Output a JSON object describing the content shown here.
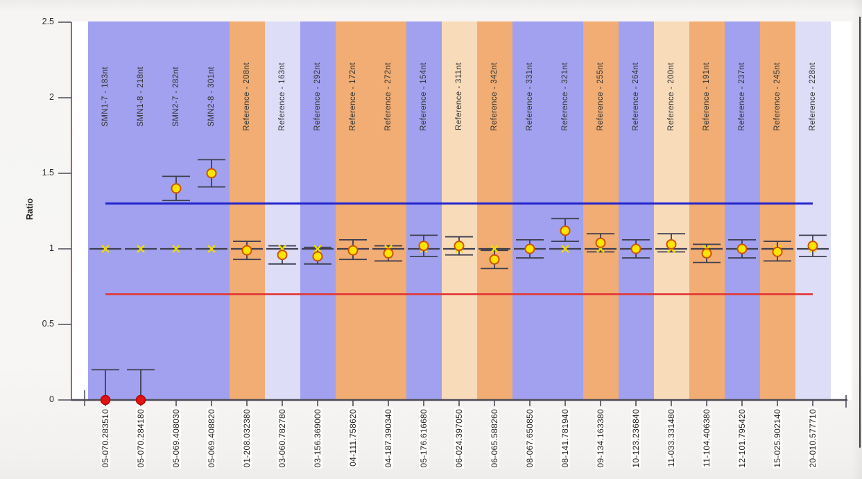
{
  "chart_data": {
    "type": "scatter",
    "title": "",
    "ylabel": "Ratio",
    "ylim": [
      0,
      2.5
    ],
    "yticks": [
      0,
      0.5,
      1,
      1.5,
      2,
      2.5
    ],
    "grid": false,
    "legend": "none",
    "upper_threshold": 1.3,
    "lower_threshold": 0.7,
    "reference_ratio": 1.0,
    "x_label_rotation": -90,
    "points": [
      {
        "probe": "SMN1-7 - 183nt",
        "x_label": "05-070.283510",
        "band": "purple",
        "ratio": 0.0,
        "err_low": 0.0,
        "err_high": 0.2,
        "status": "absent"
      },
      {
        "probe": "SMN1-8 - 218nt",
        "x_label": "05-070.284180",
        "band": "purple",
        "ratio": 0.0,
        "err_low": 0.0,
        "err_high": 0.2,
        "status": "absent"
      },
      {
        "probe": "SMN2-7 - 282nt",
        "x_label": "05-069.408030",
        "band": "purple",
        "ratio": 1.4,
        "err_low": 1.32,
        "err_high": 1.48,
        "status": "gain"
      },
      {
        "probe": "SMN2-8 - 301nt",
        "x_label": "05-069.408820",
        "band": "purple",
        "ratio": 1.5,
        "err_low": 1.41,
        "err_high": 1.59,
        "status": "gain"
      },
      {
        "probe": "Reference - 208nt",
        "x_label": "01-208.032380",
        "band": "orange",
        "ratio": 0.99,
        "err_low": 0.93,
        "err_high": 1.05,
        "status": "normal"
      },
      {
        "probe": "Reference - 163nt",
        "x_label": "03-060.782780",
        "band": "lavender",
        "ratio": 0.96,
        "err_low": 0.9,
        "err_high": 1.02,
        "status": "normal"
      },
      {
        "probe": "Reference - 292nt",
        "x_label": "03-156.369000",
        "band": "purple",
        "ratio": 0.95,
        "err_low": 0.9,
        "err_high": 1.01,
        "status": "normal"
      },
      {
        "probe": "Reference - 172nt",
        "x_label": "04-111.758620",
        "band": "orange",
        "ratio": 0.99,
        "err_low": 0.93,
        "err_high": 1.06,
        "status": "normal"
      },
      {
        "probe": "Reference - 272nt",
        "x_label": "04-187.390340",
        "band": "orange",
        "ratio": 0.97,
        "err_low": 0.92,
        "err_high": 1.02,
        "status": "normal"
      },
      {
        "probe": "Reference - 154nt",
        "x_label": "05-176.616680",
        "band": "purple",
        "ratio": 1.02,
        "err_low": 0.95,
        "err_high": 1.09,
        "status": "normal"
      },
      {
        "probe": "Reference - 311nt",
        "x_label": "06-024.397050",
        "band": "peach",
        "ratio": 1.02,
        "err_low": 0.96,
        "err_high": 1.08,
        "status": "normal"
      },
      {
        "probe": "Reference - 342nt",
        "x_label": "06-065.588260",
        "band": "orange",
        "ratio": 0.93,
        "err_low": 0.87,
        "err_high": 0.99,
        "status": "normal"
      },
      {
        "probe": "Reference - 331nt",
        "x_label": "08-067.650850",
        "band": "purple",
        "ratio": 1.0,
        "err_low": 0.94,
        "err_high": 1.06,
        "status": "normal"
      },
      {
        "probe": "Reference - 321nt",
        "x_label": "08-141.781940",
        "band": "purple",
        "ratio": 1.12,
        "err_low": 1.05,
        "err_high": 1.2,
        "status": "normal"
      },
      {
        "probe": "Reference - 255nt",
        "x_label": "09-134.163380",
        "band": "orange",
        "ratio": 1.04,
        "err_low": 0.98,
        "err_high": 1.1,
        "status": "normal"
      },
      {
        "probe": "Reference - 264nt",
        "x_label": "10-123.236840",
        "band": "purple",
        "ratio": 1.0,
        "err_low": 0.94,
        "err_high": 1.06,
        "status": "normal"
      },
      {
        "probe": "Reference - 200nt",
        "x_label": "11-033.331480",
        "band": "peach",
        "ratio": 1.03,
        "err_low": 0.98,
        "err_high": 1.1,
        "status": "normal"
      },
      {
        "probe": "Reference - 191nt",
        "x_label": "11-104.406380",
        "band": "orange",
        "ratio": 0.97,
        "err_low": 0.91,
        "err_high": 1.03,
        "status": "normal"
      },
      {
        "probe": "Reference - 237nt",
        "x_label": "12-101.795420",
        "band": "purple",
        "ratio": 1.0,
        "err_low": 0.94,
        "err_high": 1.06,
        "status": "normal"
      },
      {
        "probe": "Reference - 245nt",
        "x_label": "15-025.902140",
        "band": "orange",
        "ratio": 0.98,
        "err_low": 0.92,
        "err_high": 1.05,
        "status": "normal"
      },
      {
        "probe": "Reference - 228nt",
        "x_label": "20-010.577710",
        "band": "lavender",
        "ratio": 1.02,
        "err_low": 0.95,
        "err_high": 1.09,
        "status": "normal"
      }
    ],
    "colors": {
      "band_purple": "#a1a1ef",
      "band_orange": "#f1ad73",
      "band_lavender": "#deddf8",
      "band_peach": "#f8dcba",
      "plot_background": "#ffffff",
      "page_background": "#f6f5f3",
      "upper_threshold_line": "#2424cd",
      "lower_threshold_line": "#e23434",
      "reference_dash": "#3e3e50",
      "error_bar": "#3e3e50",
      "point_fill": "#ffe400",
      "point_stroke": "#d05200",
      "reference_marker": "#f0dc00",
      "absent_point_fill": "#e01414",
      "absent_point_stroke": "#b50000",
      "x_axis": "#4c4b57",
      "y_axis": "#9a3a3a",
      "tick_text": "#2e2c2a",
      "probe_label_text": "#333333"
    }
  }
}
